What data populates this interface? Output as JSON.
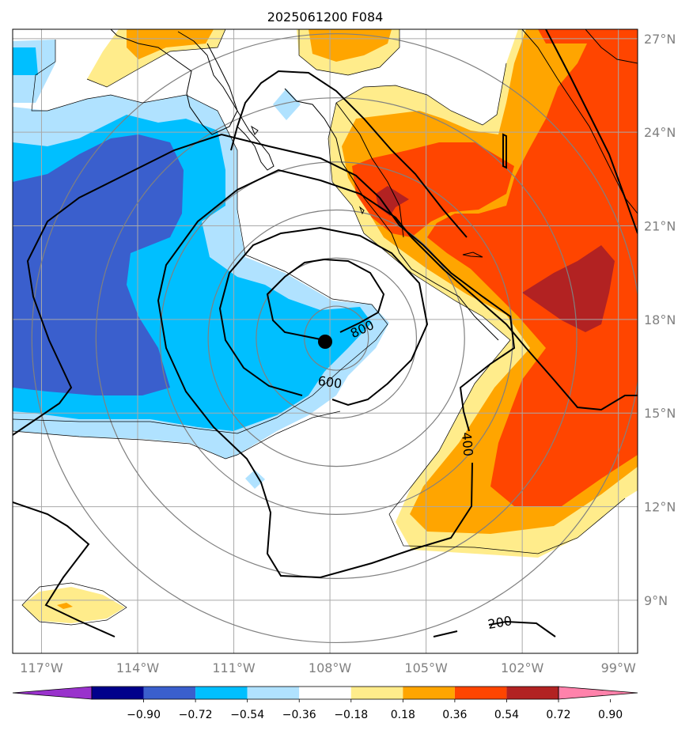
{
  "title": "2025061200 F084",
  "axes": {
    "lon_min": -117.9,
    "lon_max": -98.4,
    "lat_min": 7.3,
    "lat_max": 27.3,
    "lon_ticks": [
      {
        "value": -117,
        "label": "117°W"
      },
      {
        "value": -114,
        "label": "114°W"
      },
      {
        "value": -111,
        "label": "111°W"
      },
      {
        "value": -108,
        "label": "108°W"
      },
      {
        "value": -105,
        "label": "105°W"
      },
      {
        "value": -102,
        "label": "102°W"
      },
      {
        "value": -99,
        "label": "99°W"
      }
    ],
    "lat_ticks": [
      {
        "value": 27,
        "label": "27°N"
      },
      {
        "value": 24,
        "label": "24°N"
      },
      {
        "value": 21,
        "label": "21°N"
      },
      {
        "value": 18,
        "label": "18°N"
      },
      {
        "value": 15,
        "label": "15°N"
      },
      {
        "value": 12,
        "label": "12°N"
      },
      {
        "value": 9,
        "label": "9°N"
      }
    ]
  },
  "center": {
    "lon": -107.8,
    "lat": 17.4
  },
  "range_rings_deg": [
    1,
    2.5,
    4,
    5.5,
    7.5,
    9.5
  ],
  "contour_labels": [
    {
      "text": "800",
      "lon": -107.0,
      "lat": 17.7,
      "angle": -25
    },
    {
      "text": "600",
      "lon": -108.0,
      "lat": 16.0,
      "angle": 8
    },
    {
      "text": "400",
      "lon": -103.7,
      "lat": 14.0,
      "angle": 85
    },
    {
      "text": "200",
      "lon": -102.7,
      "lat": 8.3,
      "angle": -10
    }
  ],
  "colorbar": {
    "colors": [
      "#9932cc",
      "#00008b",
      "#3a5fcd",
      "#00bfff",
      "#b0e2ff",
      "#ffffff",
      "#ffec8b",
      "#ffa500",
      "#ff4500",
      "#b22222",
      "#ff82ab"
    ],
    "tick_labels": [
      "−0.90",
      "−0.72",
      "−0.54",
      "−0.36",
      "−0.18",
      "0.18",
      "0.36",
      "0.54",
      "0.72",
      "0.90"
    ]
  }
}
